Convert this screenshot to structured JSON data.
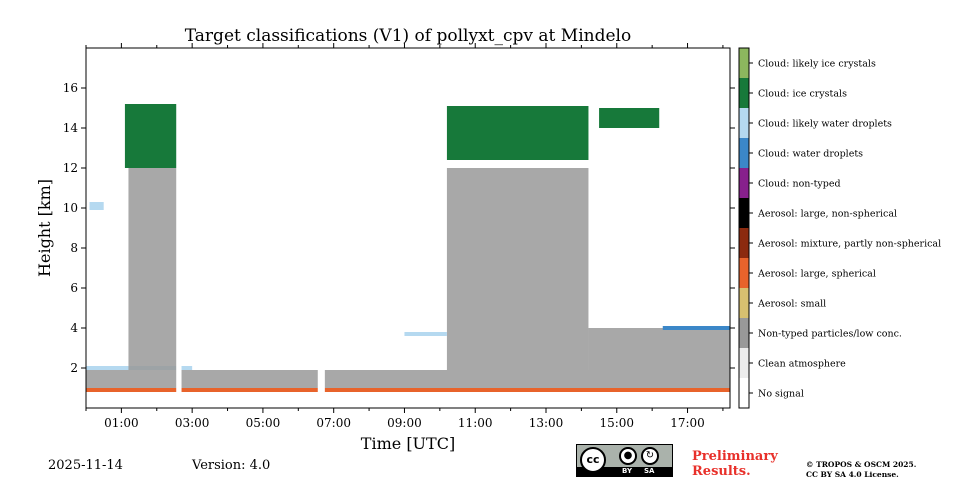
{
  "chart_data": {
    "type": "heatmap",
    "title": "Target classifications (V1) of pollyxt_cpv at Mindelo",
    "xlabel": "Time [UTC]",
    "ylabel": "Height [km]",
    "xlim": [
      0.0,
      18.2
    ],
    "ylim": [
      0.0,
      18.0
    ],
    "x_ticks": [
      1,
      3,
      5,
      7,
      9,
      11,
      13,
      15,
      17
    ],
    "x_tick_labels": [
      "01:00",
      "03:00",
      "05:00",
      "07:00",
      "09:00",
      "11:00",
      "13:00",
      "15:00",
      "17:00"
    ],
    "y_ticks": [
      2,
      4,
      6,
      8,
      10,
      12,
      14,
      16
    ],
    "y_tick_labels": [
      "2",
      "4",
      "6",
      "8",
      "10",
      "12",
      "14",
      "16"
    ],
    "legend": [
      {
        "value": 0,
        "label": "No signal",
        "color": "#ffffff"
      },
      {
        "value": 1,
        "label": "Clean atmosphere",
        "color": "#ececec"
      },
      {
        "value": 2,
        "label": "Non-typed particles/low conc.",
        "color": "#999999"
      },
      {
        "value": 3,
        "label": "Aerosol: small",
        "color": "#d8c070"
      },
      {
        "value": 4,
        "label": "Aerosol: large, spherical",
        "color": "#e8632b"
      },
      {
        "value": 5,
        "label": "Aerosol: mixture, partly non-spherical",
        "color": "#8b2a0f"
      },
      {
        "value": 6,
        "label": "Aerosol: large, non-spherical",
        "color": "#000000"
      },
      {
        "value": 7,
        "label": "Cloud: non-typed",
        "color": "#87208c"
      },
      {
        "value": 8,
        "label": "Cloud: water droplets",
        "color": "#3b87c8"
      },
      {
        "value": 9,
        "label": "Cloud: likely water droplets",
        "color": "#b5d9f0"
      },
      {
        "value": 10,
        "label": "Cloud: ice crystals",
        "color": "#17793a"
      },
      {
        "value": 11,
        "label": "Cloud: likely ice crystals",
        "color": "#8cb75e"
      }
    ],
    "regions": [
      {
        "class": "Non-typed particles/low conc.",
        "t_start": 0.0,
        "t_end": 18.2,
        "h_bottom": 0.9,
        "h_top": 1.9
      },
      {
        "class": "Aerosol: large, spherical",
        "t_start": 0.0,
        "t_end": 18.2,
        "h_bottom": 0.8,
        "h_top": 1.0
      },
      {
        "class": "Cloud: likely water droplets",
        "t_start": 0.0,
        "t_end": 3.0,
        "h_bottom": 1.9,
        "h_top": 2.1
      },
      {
        "class": "Non-typed particles/low conc.",
        "t_start": 1.2,
        "t_end": 2.6,
        "h_bottom": 1.9,
        "h_top": 12.5
      },
      {
        "class": "Cloud: ice crystals",
        "t_start": 1.1,
        "t_end": 2.6,
        "h_bottom": 12.0,
        "h_top": 15.2
      },
      {
        "class": "Non-typed particles/low conc.",
        "t_start": 10.2,
        "t_end": 14.2,
        "h_bottom": 1.9,
        "h_top": 12.0
      },
      {
        "class": "Cloud: ice crystals",
        "t_start": 10.2,
        "t_end": 14.2,
        "h_bottom": 12.4,
        "h_top": 15.1
      },
      {
        "class": "Cloud: ice crystals",
        "t_start": 14.5,
        "t_end": 16.2,
        "h_bottom": 14.0,
        "h_top": 15.0
      },
      {
        "class": "Non-typed particles/low conc.",
        "t_start": 14.2,
        "t_end": 18.2,
        "h_bottom": 1.9,
        "h_top": 4.0
      },
      {
        "class": "Cloud: water droplets",
        "t_start": 16.3,
        "t_end": 18.2,
        "h_bottom": 3.9,
        "h_top": 4.1
      },
      {
        "class": "Cloud: likely water droplets",
        "t_start": 9.0,
        "t_end": 10.2,
        "h_bottom": 3.6,
        "h_top": 3.8
      },
      {
        "class": "Cloud: likely water droplets",
        "t_start": 0.1,
        "t_end": 0.5,
        "h_bottom": 9.9,
        "h_top": 10.3
      }
    ],
    "no_signal_gaps": [
      {
        "t_start": 2.55,
        "t_end": 2.7
      },
      {
        "t_start": 6.55,
        "t_end": 6.75
      }
    ]
  },
  "footer": {
    "date": "2025-11-14",
    "version": "Version: 4.0",
    "preliminary": "Preliminary Results.",
    "copyright_line1": "© TROPOS & OSCM 2025.",
    "copyright_line2": "CC BY SA 4.0 License.",
    "license_badge": {
      "cc": "cc",
      "by": "BY",
      "sa": "SA"
    }
  }
}
